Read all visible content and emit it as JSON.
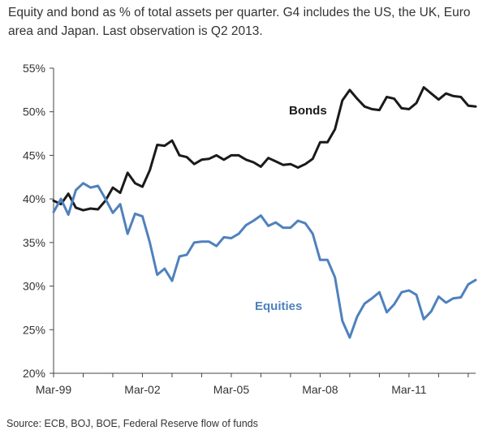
{
  "subtitle": "Equity and bond as % of total assets per quarter. G4 includes the US, the UK, Euro area and Japan. Last observation is Q2 2013.",
  "source": "Source: ECB, BOJ, BOE, Federal Reserve flow of funds",
  "chart_data": {
    "type": "line",
    "title": "",
    "xlabel": "",
    "ylabel": "",
    "ylim": [
      20,
      55
    ],
    "yticks": [
      "20%",
      "25%",
      "30%",
      "35%",
      "40%",
      "45%",
      "50%",
      "55%"
    ],
    "ytick_values": [
      20,
      25,
      30,
      35,
      40,
      45,
      50,
      55
    ],
    "xtick_labels": [
      "Mar-99",
      "Mar-02",
      "Mar-05",
      "Mar-08",
      "Mar-11"
    ],
    "xtick_index": [
      0,
      12,
      24,
      36,
      48
    ],
    "x_start": "Mar-99",
    "x_end": "Jun-13",
    "series": [
      {
        "name": "Bonds",
        "color": "#1a1a1a",
        "values": [
          39.8,
          39.4,
          40.6,
          39.0,
          38.7,
          38.9,
          38.8,
          39.8,
          41.3,
          40.7,
          43.0,
          41.8,
          41.4,
          43.3,
          46.2,
          46.1,
          46.7,
          45.0,
          44.8,
          44.0,
          44.5,
          44.6,
          45.0,
          44.5,
          45.0,
          45.0,
          44.5,
          44.2,
          43.7,
          44.7,
          44.3,
          43.9,
          44.0,
          43.6,
          44.0,
          44.6,
          46.5,
          46.5,
          48.0,
          51.3,
          52.5,
          51.5,
          50.6,
          50.3,
          50.2,
          51.7,
          51.5,
          50.4,
          50.3,
          51.0,
          52.8,
          52.1,
          51.4,
          52.1,
          51.8,
          51.7,
          50.7,
          50.6
        ]
      },
      {
        "name": "Equities",
        "color": "#4f81bd",
        "values": [
          38.5,
          40.0,
          38.2,
          41.0,
          41.8,
          41.3,
          41.5,
          40.0,
          38.4,
          39.4,
          36.0,
          38.3,
          38.0,
          35.0,
          31.3,
          32.0,
          30.6,
          33.4,
          33.6,
          35.0,
          35.1,
          35.1,
          34.6,
          35.6,
          35.5,
          36.0,
          37.0,
          37.5,
          38.1,
          36.9,
          37.3,
          36.7,
          36.7,
          37.5,
          37.2,
          36.0,
          33.0,
          33.0,
          31.0,
          26.0,
          24.1,
          26.5,
          28.0,
          28.6,
          29.3,
          27.0,
          27.9,
          29.3,
          29.5,
          29.0,
          26.2,
          27.1,
          28.8,
          28.1,
          28.6,
          28.7,
          30.2,
          30.7
        ]
      }
    ],
    "annotations": [
      {
        "text": "Bonds",
        "series": "Bonds"
      },
      {
        "text": "Equities",
        "series": "Equities"
      }
    ],
    "grid": false,
    "legend": "none"
  }
}
